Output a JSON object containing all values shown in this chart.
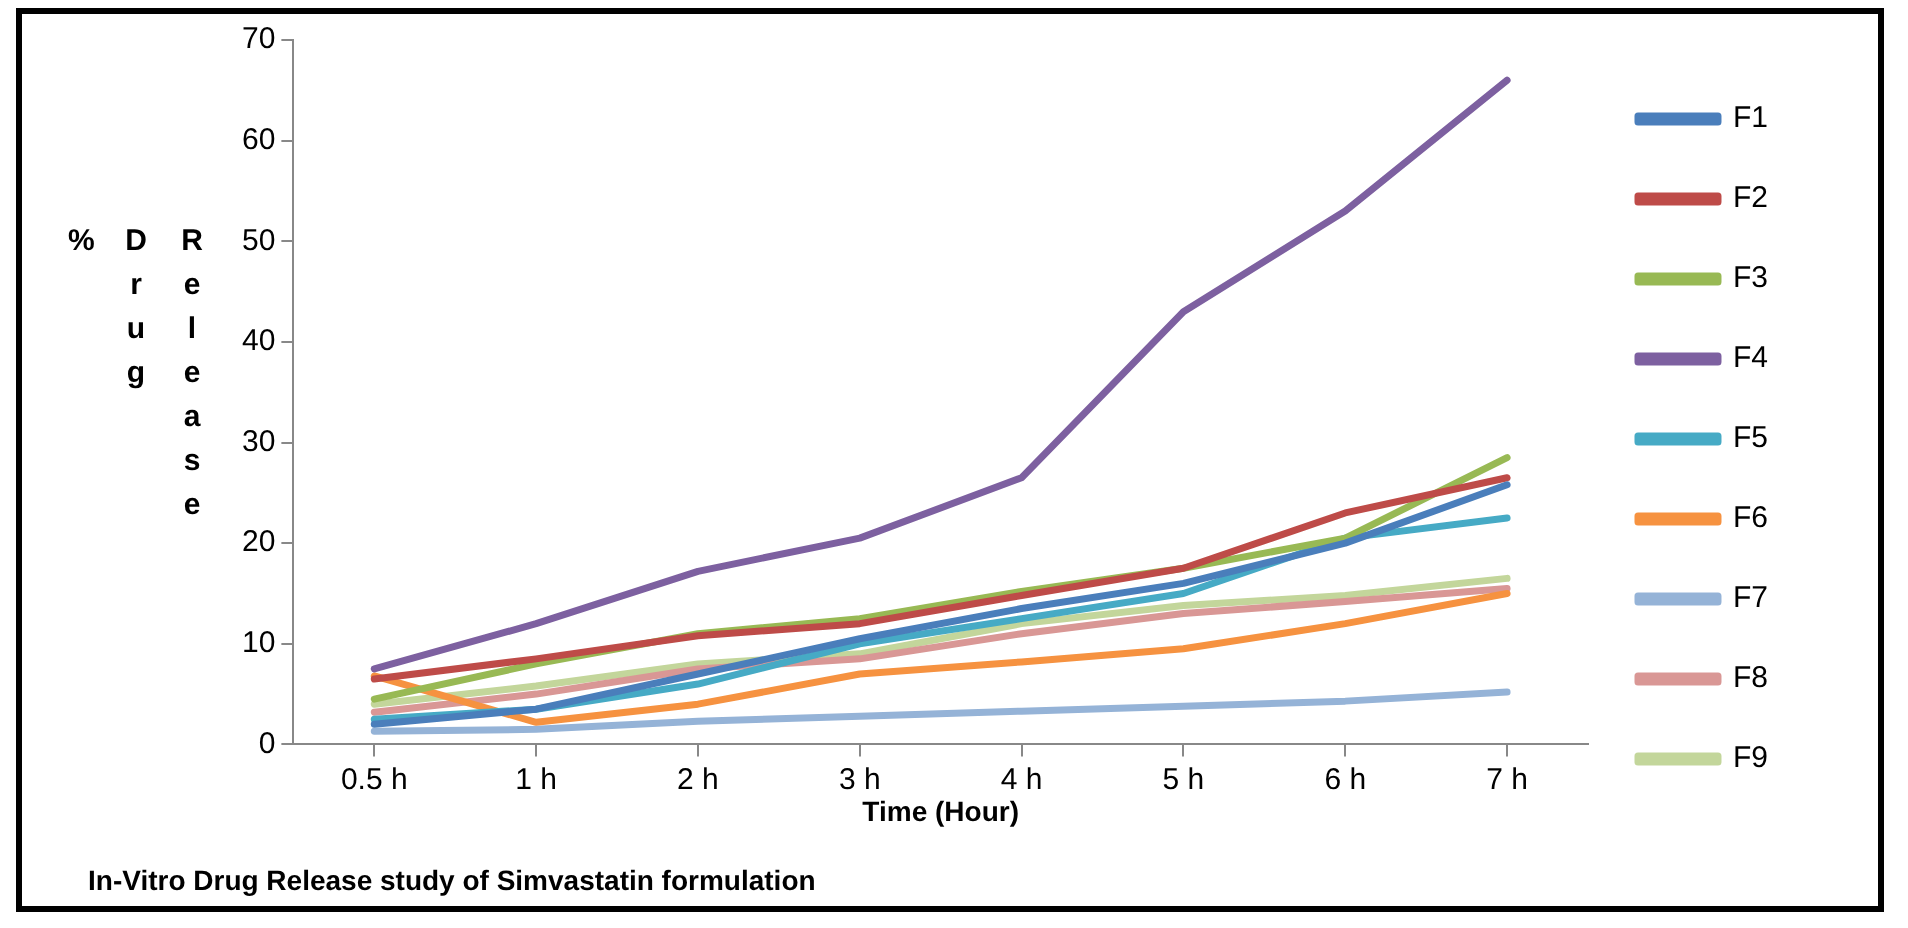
{
  "chart_data": {
    "type": "line",
    "xlabel": "Time (Hour)",
    "ylabel": "% Drug Release",
    "annotations": [
      "In-Vitro Drug Release study of Simvastatin formulation"
    ],
    "categories": [
      "0.5 h",
      "1 h",
      "2 h",
      "3 h",
      "4 h",
      "5 h",
      "6 h",
      "7 h"
    ],
    "ylim": [
      0,
      70
    ],
    "yticks": [
      0,
      10,
      20,
      30,
      40,
      50,
      60,
      70
    ],
    "grid": false,
    "legend": "right",
    "marker": "none",
    "series": [
      {
        "name": "F1",
        "color": "#4a7ebb",
        "values": [
          2,
          3.5,
          7,
          10.5,
          13.5,
          16,
          20,
          25.8
        ]
      },
      {
        "name": "F2",
        "color": "#be4b48",
        "values": [
          6.5,
          8.5,
          10.8,
          12,
          14.8,
          17.5,
          23,
          26.5
        ]
      },
      {
        "name": "F3",
        "color": "#98b954",
        "values": [
          4.5,
          8,
          11,
          12.5,
          15.2,
          17.5,
          20.5,
          28.5
        ]
      },
      {
        "name": "F4",
        "color": "#7d60a0",
        "values": [
          7.5,
          12,
          17.2,
          20.5,
          26.5,
          43,
          53,
          66
        ]
      },
      {
        "name": "F5",
        "color": "#46aac5",
        "values": [
          2.5,
          3.5,
          6,
          10,
          12.5,
          15,
          20.5,
          22.5
        ]
      },
      {
        "name": "F6",
        "color": "#f69240",
        "values": [
          6.8,
          2.2,
          4,
          7,
          8.2,
          9.5,
          12,
          15
        ]
      },
      {
        "name": "F7",
        "color": "#95b3d7",
        "values": [
          1.3,
          1.5,
          2.3,
          2.8,
          3.3,
          3.8,
          4.3,
          5.2
        ]
      },
      {
        "name": "F8",
        "color": "#d99795",
        "values": [
          3.2,
          5,
          7.5,
          8.5,
          11,
          13,
          14.2,
          15.5
        ]
      },
      {
        "name": "F9",
        "color": "#c3d69b",
        "values": [
          4,
          5.8,
          8,
          9,
          12,
          13.8,
          14.8,
          16.5
        ]
      }
    ]
  }
}
